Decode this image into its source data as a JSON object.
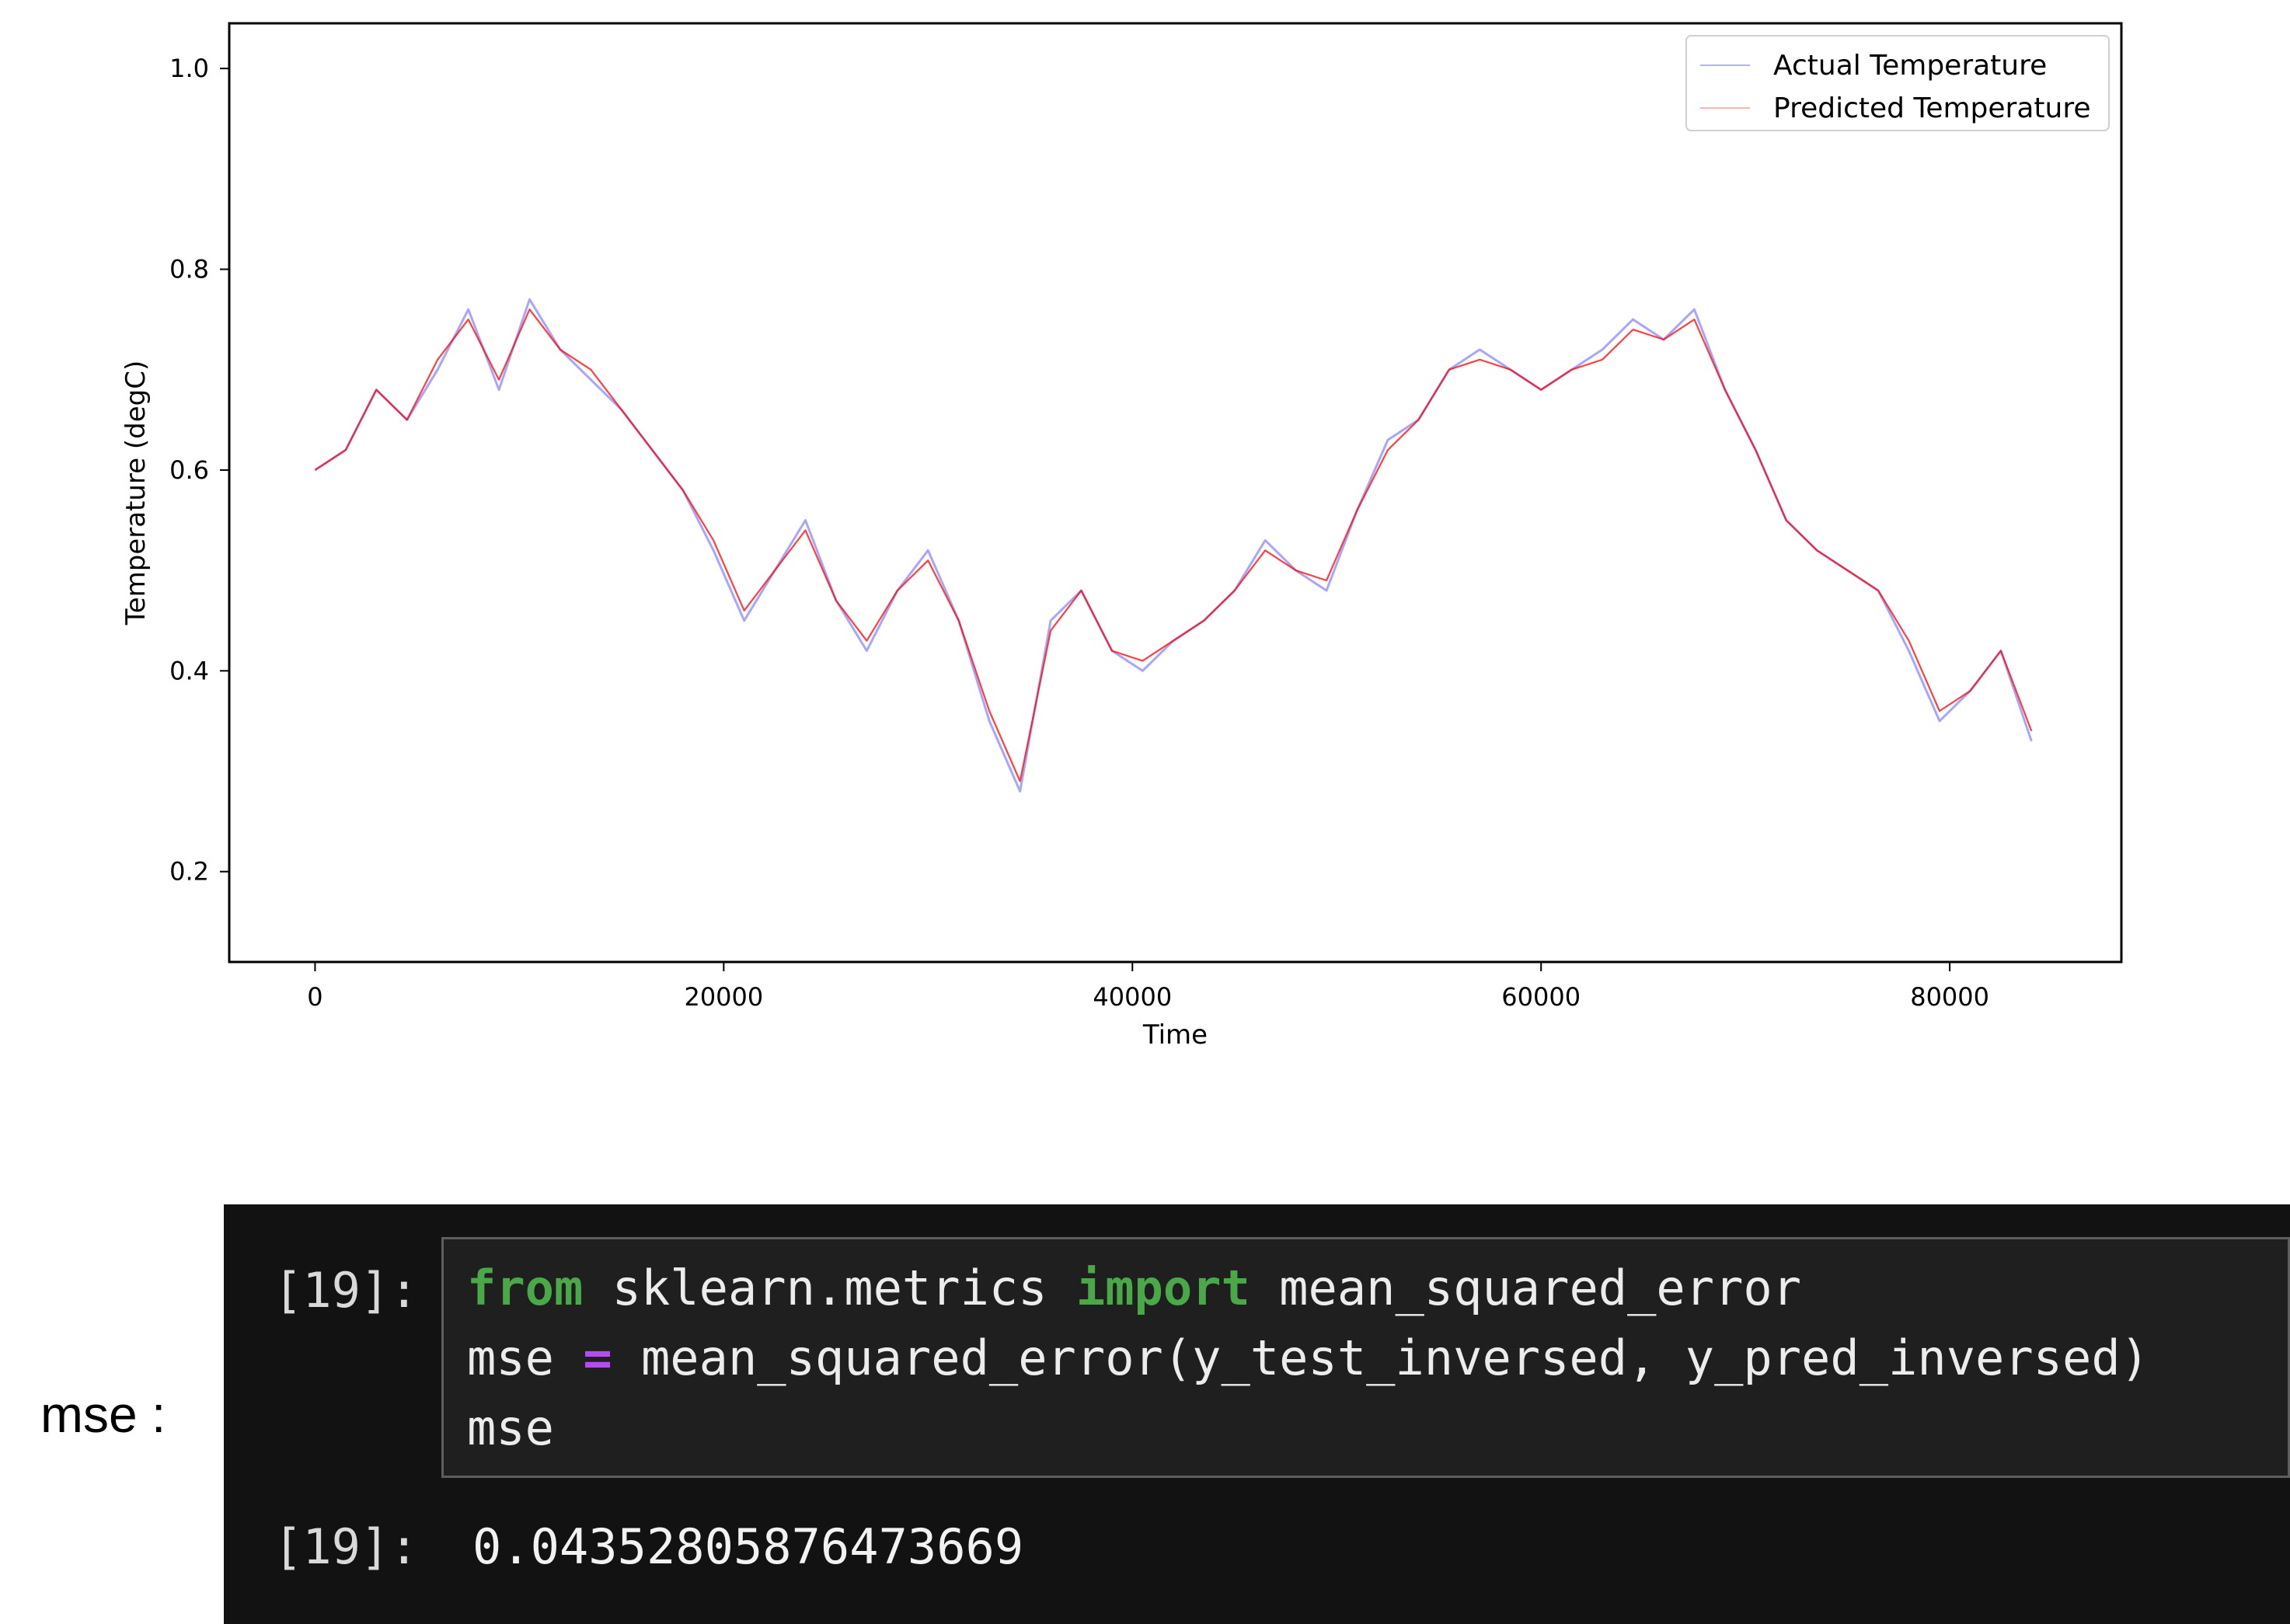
{
  "chart_data": {
    "type": "line",
    "title": "",
    "xlabel": "Time",
    "ylabel": "Temperature (degC)",
    "xlim": [
      -4200,
      88400
    ],
    "ylim": [
      0.11,
      1.045
    ],
    "xticks": [
      0,
      20000,
      40000,
      60000,
      80000
    ],
    "xtick_labels": [
      "0",
      "20000",
      "40000",
      "60000",
      "80000"
    ],
    "yticks": [
      0.2,
      0.4,
      0.6,
      0.8,
      1.0
    ],
    "ytick_labels": [
      "0.2",
      "0.4",
      "0.6",
      "0.8",
      "1.0"
    ],
    "grid": false,
    "legend_position": "upper right",
    "series": [
      {
        "name": "Actual Temperature",
        "color": "#0000ff",
        "x": [
          0,
          1500,
          3000,
          4500,
          6000,
          7500,
          9000,
          10500,
          12000,
          13500,
          15000,
          16500,
          18000,
          19500,
          21000,
          22500,
          24000,
          25500,
          27000,
          28500,
          30000,
          31500,
          33000,
          34500,
          36000,
          37500,
          39000,
          40500,
          42000,
          43500,
          45000,
          46500,
          48000,
          49500,
          51000,
          52500,
          54000,
          55500,
          57000,
          58500,
          60000,
          61500,
          63000,
          64500,
          66000,
          67500,
          69000,
          70500,
          72000,
          73500,
          75000,
          76500,
          78000,
          79500,
          81000,
          82500,
          84000
        ],
        "values": [
          0.6,
          0.62,
          0.68,
          0.65,
          0.7,
          0.76,
          0.68,
          0.77,
          0.72,
          0.69,
          0.66,
          0.62,
          0.58,
          0.52,
          0.45,
          0.5,
          0.55,
          0.47,
          0.42,
          0.48,
          0.52,
          0.45,
          0.35,
          0.28,
          0.45,
          0.48,
          0.42,
          0.4,
          0.43,
          0.45,
          0.48,
          0.53,
          0.5,
          0.48,
          0.56,
          0.63,
          0.65,
          0.7,
          0.72,
          0.7,
          0.68,
          0.7,
          0.72,
          0.75,
          0.73,
          0.76,
          0.68,
          0.62,
          0.55,
          0.52,
          0.5,
          0.48,
          0.42,
          0.35,
          0.38,
          0.42,
          0.33
        ]
      },
      {
        "name": "Predicted Temperature",
        "color": "#ff0000",
        "x": [
          0,
          1500,
          3000,
          4500,
          6000,
          7500,
          9000,
          10500,
          12000,
          13500,
          15000,
          16500,
          18000,
          19500,
          21000,
          22500,
          24000,
          25500,
          27000,
          28500,
          30000,
          31500,
          33000,
          34500,
          36000,
          37500,
          39000,
          40500,
          42000,
          43500,
          45000,
          46500,
          48000,
          49500,
          51000,
          52500,
          54000,
          55500,
          57000,
          58500,
          60000,
          61500,
          63000,
          64500,
          66000,
          67500,
          69000,
          70500,
          72000,
          73500,
          75000,
          76500,
          78000,
          79500,
          81000,
          82500,
          84000
        ],
        "values": [
          0.6,
          0.62,
          0.68,
          0.65,
          0.71,
          0.75,
          0.69,
          0.76,
          0.72,
          0.7,
          0.66,
          0.62,
          0.58,
          0.53,
          0.46,
          0.5,
          0.54,
          0.47,
          0.43,
          0.48,
          0.51,
          0.45,
          0.36,
          0.29,
          0.44,
          0.48,
          0.42,
          0.41,
          0.43,
          0.45,
          0.48,
          0.52,
          0.5,
          0.49,
          0.56,
          0.62,
          0.65,
          0.7,
          0.71,
          0.7,
          0.68,
          0.7,
          0.71,
          0.74,
          0.73,
          0.75,
          0.68,
          0.62,
          0.55,
          0.52,
          0.5,
          0.48,
          0.43,
          0.36,
          0.38,
          0.42,
          0.34
        ]
      }
    ]
  },
  "annotation": {
    "mse_label": "mse :"
  },
  "notebook": {
    "input_prompt": "[19]:",
    "output_prompt": "[19]:",
    "code": {
      "line1": {
        "kw1": "from",
        "mod": " sklearn.metrics ",
        "kw2": "import",
        "name": " mean_squared_error"
      },
      "line2": {
        "lhs": "mse ",
        "op": "=",
        "rhs": " mean_squared_error(y_test_inversed, y_pred_inversed)"
      },
      "line3": "mse"
    },
    "output_value": "0.04352805876473669"
  },
  "colors": {
    "notebook_bg": "#121212",
    "code_bg": "#1f1f1f",
    "keyword": "#4aa848",
    "operator": "#b44cf0"
  }
}
